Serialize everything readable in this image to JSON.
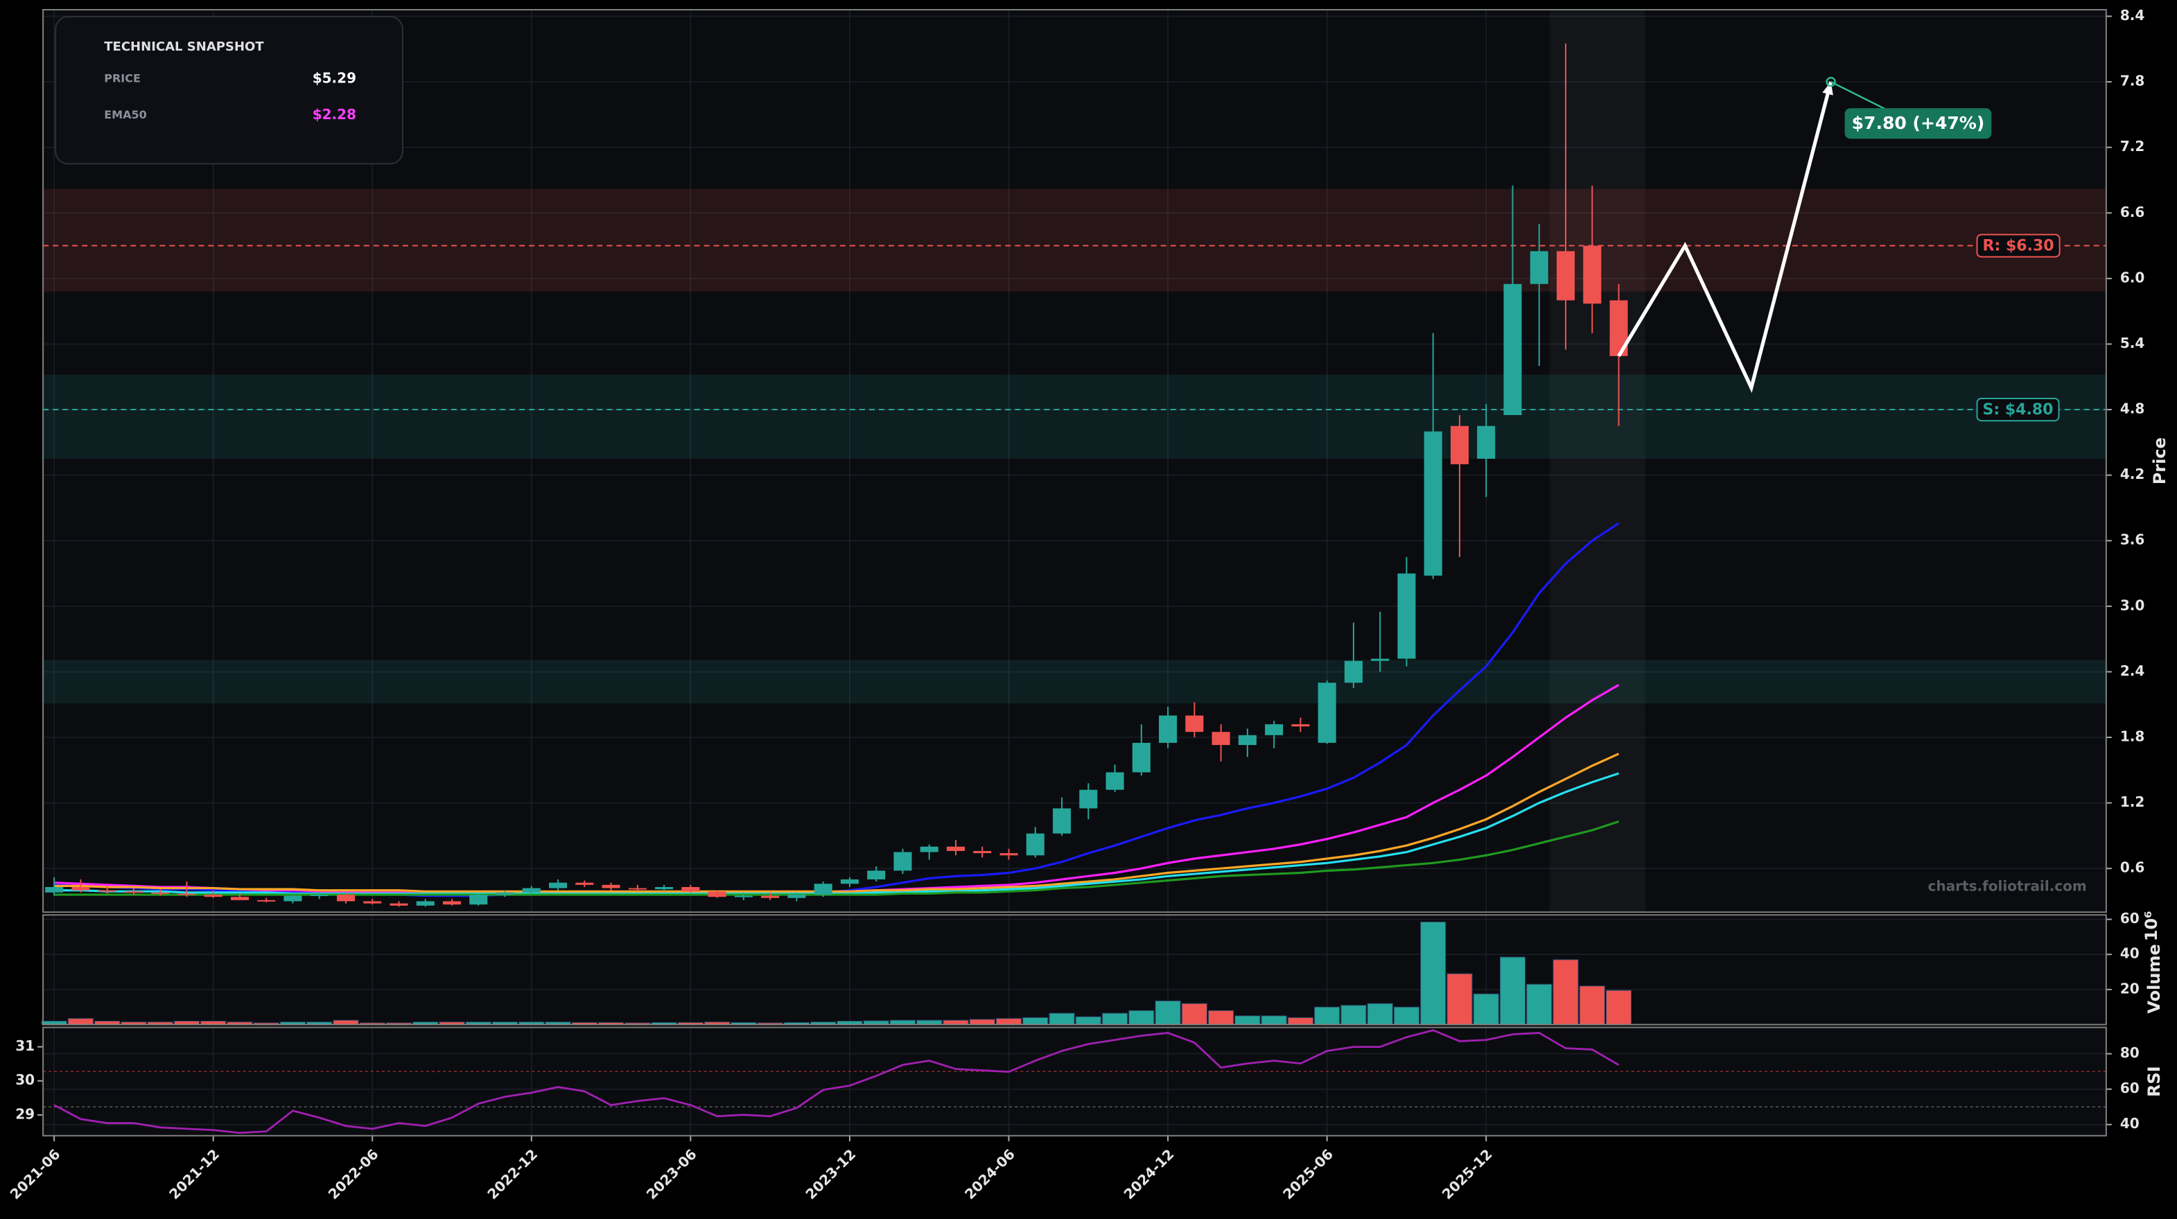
{
  "snapshot": {
    "title": "TECHNICAL SNAPSHOT",
    "rows": [
      {
        "label": "PRICE",
        "value": "$5.29"
      },
      {
        "label": "EMA50",
        "value": "$2.28"
      }
    ]
  },
  "watermark": "charts.foliotrail.com",
  "chart_data": [
    {
      "type": "candlestick",
      "x": [
        "2021-06",
        null,
        null,
        null,
        null,
        null,
        "2021-12",
        null,
        null,
        null,
        null,
        null,
        "2022-06",
        null,
        null,
        null,
        null,
        null,
        "2022-12",
        null,
        null,
        null,
        null,
        null,
        "2023-06",
        null,
        null,
        null,
        null,
        null,
        "2023-12",
        null,
        null,
        null,
        null,
        null,
        "2024-06",
        null,
        null,
        null,
        null,
        null,
        "2024-12",
        null,
        null,
        null,
        null,
        null,
        "2025-06",
        null,
        null,
        null,
        null,
        null,
        "2025-12",
        null,
        null,
        null,
        null,
        null
      ],
      "open": [
        0.38,
        0.43,
        0.4,
        0.39,
        0.38,
        0.37,
        0.36,
        0.34,
        0.31,
        0.3,
        0.35,
        0.36,
        0.3,
        0.28,
        0.26,
        0.3,
        0.27,
        0.36,
        0.38,
        0.42,
        0.47,
        0.45,
        0.42,
        0.41,
        0.43,
        0.39,
        0.34,
        0.35,
        0.33,
        0.36,
        0.46,
        0.5,
        0.58,
        0.75,
        0.8,
        0.76,
        0.74,
        0.72,
        0.92,
        1.15,
        1.32,
        1.48,
        1.75,
        2.0,
        1.85,
        1.73,
        1.82,
        1.92,
        1.75,
        2.3,
        2.5,
        2.52,
        3.28,
        4.65,
        4.35,
        4.75,
        5.95,
        6.25,
        6.3,
        5.8
      ],
      "high": [
        0.52,
        0.5,
        0.44,
        0.42,
        0.41,
        0.48,
        0.4,
        0.37,
        0.33,
        0.36,
        0.38,
        0.38,
        0.32,
        0.3,
        0.32,
        0.32,
        0.37,
        0.4,
        0.44,
        0.5,
        0.49,
        0.47,
        0.45,
        0.45,
        0.45,
        0.4,
        0.38,
        0.38,
        0.38,
        0.48,
        0.52,
        0.62,
        0.78,
        0.82,
        0.86,
        0.8,
        0.78,
        0.98,
        1.25,
        1.38,
        1.55,
        1.92,
        2.08,
        2.12,
        1.92,
        1.88,
        1.95,
        1.98,
        2.32,
        2.85,
        2.95,
        3.45,
        5.5,
        4.75,
        4.85,
        6.85,
        6.5,
        8.15,
        6.85,
        5.95
      ],
      "low": [
        0.35,
        0.38,
        0.37,
        0.36,
        0.35,
        0.34,
        0.33,
        0.31,
        0.29,
        0.28,
        0.32,
        0.28,
        0.27,
        0.25,
        0.25,
        0.26,
        0.26,
        0.34,
        0.36,
        0.4,
        0.43,
        0.4,
        0.39,
        0.39,
        0.38,
        0.33,
        0.31,
        0.31,
        0.3,
        0.34,
        0.43,
        0.48,
        0.55,
        0.68,
        0.72,
        0.7,
        0.68,
        0.7,
        0.9,
        1.05,
        1.3,
        1.45,
        1.7,
        1.8,
        1.58,
        1.62,
        1.7,
        1.85,
        1.74,
        2.25,
        2.4,
        2.45,
        3.25,
        3.45,
        4.0,
        4.75,
        5.2,
        5.35,
        5.5,
        4.65
      ],
      "close": [
        0.43,
        0.4,
        0.39,
        0.38,
        0.37,
        0.36,
        0.34,
        0.31,
        0.3,
        0.35,
        0.36,
        0.3,
        0.28,
        0.26,
        0.3,
        0.27,
        0.36,
        0.38,
        0.42,
        0.47,
        0.45,
        0.42,
        0.41,
        0.43,
        0.39,
        0.34,
        0.35,
        0.33,
        0.36,
        0.46,
        0.5,
        0.58,
        0.75,
        0.8,
        0.76,
        0.74,
        0.72,
        0.92,
        1.15,
        1.32,
        1.48,
        1.75,
        2.0,
        1.85,
        1.73,
        1.82,
        1.92,
        1.9,
        2.3,
        2.5,
        2.52,
        3.3,
        4.6,
        4.3,
        4.65,
        5.95,
        6.25,
        5.8,
        5.77,
        5.29
      ],
      "up_color": "#26a69a",
      "down_color": "#ef5350",
      "y_label": "Price",
      "ylim": [
        0.2,
        8.46
      ],
      "yticks": [
        0.6,
        1.2,
        1.8,
        2.4,
        {
          "value": 3,
          "label": "3.0"
        },
        3.6,
        4.2,
        4.8,
        5.4,
        {
          "value": 6,
          "label": "6.0"
        },
        6.6,
        7.2,
        7.8,
        8.4
      ],
      "grid": true,
      "series": [
        {
          "color": "#1a1aff",
          "values": [
            0.45,
            0.44,
            0.43,
            0.42,
            0.41,
            0.41,
            0.4,
            0.39,
            0.38,
            0.38,
            0.37,
            0.37,
            0.36,
            0.36,
            0.35,
            0.35,
            0.35,
            0.36,
            0.36,
            0.37,
            0.37,
            0.37,
            0.37,
            0.38,
            0.38,
            0.37,
            0.37,
            0.37,
            0.37,
            0.38,
            0.4,
            0.43,
            0.47,
            0.51,
            0.53,
            0.54,
            0.56,
            0.6,
            0.66,
            0.74,
            0.81,
            0.89,
            0.97,
            1.04,
            1.09,
            1.15,
            1.2,
            1.26,
            1.33,
            1.43,
            1.57,
            1.73,
            2.0,
            2.23,
            2.45,
            2.76,
            3.12,
            3.39,
            3.6,
            3.76
          ]
        },
        {
          "name": "EMA50",
          "color": "#ff1fff",
          "values": [
            0.47,
            0.46,
            0.45,
            0.44,
            0.43,
            0.43,
            0.42,
            0.41,
            0.4,
            0.4,
            0.39,
            0.39,
            0.38,
            0.38,
            0.37,
            0.37,
            0.37,
            0.37,
            0.37,
            0.38,
            0.38,
            0.38,
            0.38,
            0.38,
            0.38,
            0.38,
            0.38,
            0.38,
            0.38,
            0.38,
            0.39,
            0.4,
            0.41,
            0.42,
            0.43,
            0.44,
            0.45,
            0.47,
            0.5,
            0.53,
            0.56,
            0.6,
            0.65,
            0.69,
            0.72,
            0.75,
            0.78,
            0.82,
            0.87,
            0.93,
            1.0,
            1.07,
            1.2,
            1.32,
            1.45,
            1.62,
            1.8,
            1.98,
            2.14,
            2.28
          ]
        },
        {
          "color": "#ffa726",
          "values": [
            0.44,
            0.44,
            0.43,
            0.43,
            0.42,
            0.42,
            0.42,
            0.41,
            0.41,
            0.41,
            0.4,
            0.4,
            0.4,
            0.4,
            0.39,
            0.39,
            0.39,
            0.39,
            0.39,
            0.39,
            0.39,
            0.39,
            0.39,
            0.39,
            0.39,
            0.39,
            0.39,
            0.39,
            0.39,
            0.39,
            0.39,
            0.4,
            0.4,
            0.41,
            0.41,
            0.42,
            0.43,
            0.44,
            0.46,
            0.48,
            0.5,
            0.53,
            0.56,
            0.58,
            0.6,
            0.62,
            0.64,
            0.66,
            0.69,
            0.72,
            0.76,
            0.81,
            0.88,
            0.96,
            1.05,
            1.17,
            1.3,
            1.42,
            1.54,
            1.65
          ]
        },
        {
          "color": "#26e0f0",
          "values": [
            0.4,
            0.4,
            0.39,
            0.39,
            0.39,
            0.38,
            0.38,
            0.38,
            0.38,
            0.37,
            0.37,
            0.37,
            0.37,
            0.37,
            0.37,
            0.37,
            0.37,
            0.37,
            0.37,
            0.37,
            0.37,
            0.37,
            0.37,
            0.37,
            0.37,
            0.37,
            0.37,
            0.37,
            0.37,
            0.37,
            0.37,
            0.38,
            0.38,
            0.39,
            0.39,
            0.4,
            0.41,
            0.42,
            0.44,
            0.46,
            0.48,
            0.5,
            0.53,
            0.55,
            0.57,
            0.59,
            0.61,
            0.63,
            0.65,
            0.68,
            0.71,
            0.75,
            0.82,
            0.89,
            0.97,
            1.08,
            1.2,
            1.3,
            1.39,
            1.47
          ]
        },
        {
          "color": "#1f9a1f",
          "values": [
            0.36,
            0.36,
            0.36,
            0.36,
            0.36,
            0.36,
            0.36,
            0.36,
            0.36,
            0.36,
            0.36,
            0.36,
            0.36,
            0.36,
            0.36,
            0.36,
            0.36,
            0.36,
            0.36,
            0.36,
            0.36,
            0.36,
            0.36,
            0.36,
            0.36,
            0.36,
            0.36,
            0.36,
            0.36,
            0.36,
            0.36,
            0.36,
            0.37,
            0.37,
            0.38,
            0.38,
            0.39,
            0.4,
            0.42,
            0.43,
            0.45,
            0.47,
            0.49,
            0.51,
            0.53,
            0.54,
            0.55,
            0.56,
            0.58,
            0.59,
            0.61,
            0.63,
            0.65,
            0.68,
            0.72,
            0.77,
            0.83,
            0.89,
            0.95,
            1.03
          ]
        }
      ],
      "zones": [
        {
          "range": [
            5.88,
            6.82
          ],
          "color": "#ef5350"
        },
        {
          "range": [
            4.35,
            5.12
          ],
          "color": "#26a69a"
        },
        {
          "range": [
            2.11,
            2.51
          ],
          "color": "#26a69a"
        }
      ],
      "levels": [
        {
          "value": 6.3,
          "label": "R: $6.30",
          "color": "#ef5350"
        },
        {
          "value": 4.8,
          "label": "S: $4.80",
          "color": "#26a69a"
        }
      ],
      "projection": {
        "x_index": [
          59,
          61.5,
          64,
          67
        ],
        "values": [
          5.29,
          6.3,
          5.0,
          7.8
        ],
        "color": "#ffffff",
        "label": "$7.80 (+47%)",
        "label_color": "#16765a"
      }
    },
    {
      "type": "bar",
      "values": [
        2,
        3.5,
        2,
        1.5,
        1.5,
        2,
        2,
        1.5,
        1,
        1.5,
        1.5,
        2.5,
        1,
        1,
        1.5,
        1.5,
        1.5,
        1.5,
        1.5,
        1.5,
        1.2,
        1.2,
        1,
        1.2,
        1.2,
        1.5,
        1.2,
        1,
        1.2,
        1.5,
        2,
        2.2,
        2.5,
        2.5,
        2.5,
        3,
        3.5,
        4,
        6.5,
        4.5,
        6.5,
        8,
        13.5,
        12,
        8,
        5,
        5,
        4,
        10,
        11,
        12,
        10,
        58.5,
        29,
        17.5,
        38.5,
        23,
        37,
        22,
        19.5
      ],
      "y_label": "Volume",
      "y_offset_label": "10⁶",
      "ylim": [
        0,
        62.5
      ],
      "yticks": [
        20,
        40,
        60
      ]
    },
    {
      "type": "line",
      "y_label": "RSI",
      "series": [
        {
          "color": "#a020b0",
          "values": [
            51.0,
            43.1,
            40.8,
            40.8,
            38.4,
            37.6,
            36.9,
            35.3,
            36.1,
            47.8,
            43.9,
            39.2,
            37.6,
            40.8,
            39.2,
            43.9,
            51.8,
            55.7,
            58.0,
            61.2,
            58.8,
            51.0,
            53.3,
            54.9,
            51.0,
            44.7,
            45.5,
            44.7,
            49.4,
            59.6,
            62.0,
            67.5,
            73.7,
            76.1,
            71.4,
            70.6,
            69.8,
            76.1,
            81.6,
            85.5,
            87.8,
            90.2,
            91.8,
            86.3,
            72.2,
            74.5,
            76.1,
            74.5,
            81.6,
            83.9,
            83.9,
            89.4,
            93.3,
            87.1,
            87.8,
            91.0,
            91.8,
            83.1,
            82.4,
            73.7
          ]
        }
      ],
      "ylim": [
        33.7,
        94.9
      ],
      "yticks": [
        40,
        60,
        80
      ],
      "y2lim": [
        28.39,
        31.57
      ],
      "y2ticks": [
        29,
        30,
        31
      ],
      "reference_lines": [
        {
          "value": 70,
          "color": "#8a2a2a"
        },
        {
          "value": 50,
          "color": "#555555"
        }
      ]
    }
  ]
}
